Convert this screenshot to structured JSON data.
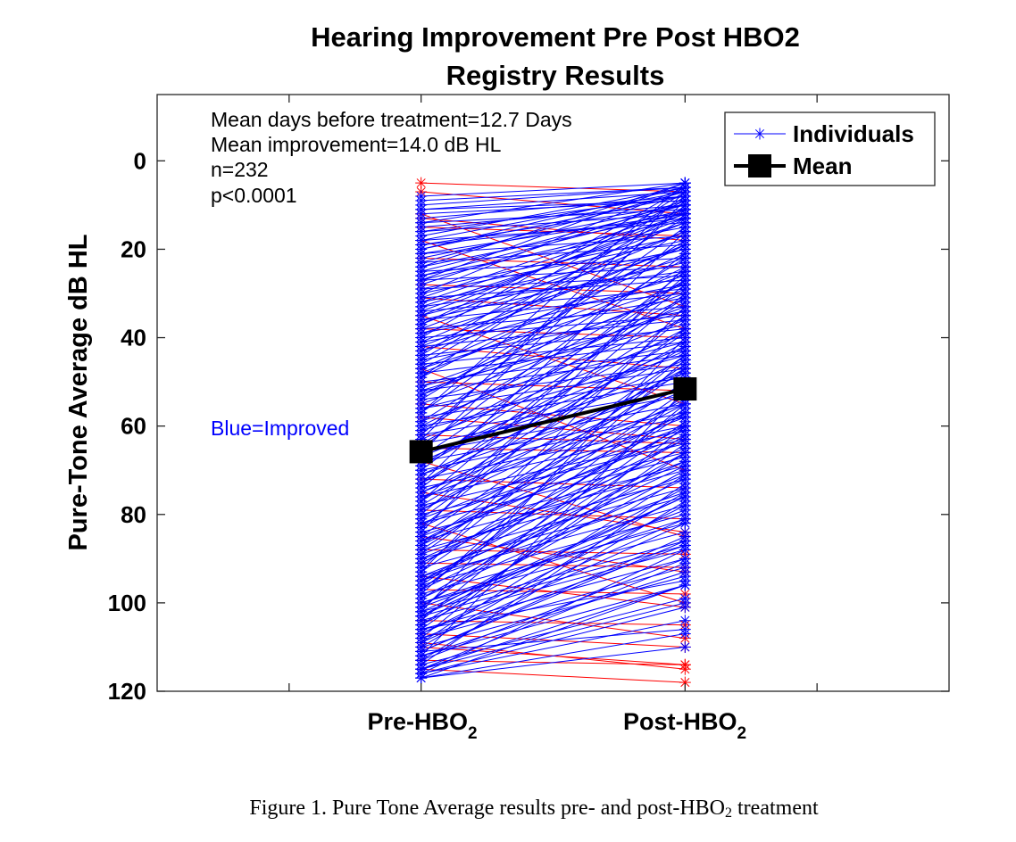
{
  "chart_data": {
    "type": "line",
    "title_lines": [
      "Hearing Improvement Pre Post HBO2",
      "Registry Results"
    ],
    "ylabel": "Pure-Tone Average dB HL",
    "ylim": [
      -15,
      120
    ],
    "y_reversed": true,
    "yticks": [
      0,
      20,
      40,
      60,
      80,
      100,
      120
    ],
    "categories": [
      {
        "main": "Pre-HBO",
        "sub": "2"
      },
      {
        "main": "Post-HBO",
        "sub": "2"
      }
    ],
    "xlim": [
      0,
      3
    ],
    "x_positions": [
      1,
      2
    ],
    "minor_x_ticks": [
      0.5,
      1,
      2,
      2.5
    ],
    "annotations": [
      "Mean days before treatment=12.7 Days",
      "Mean improvement=14.0 dB HL",
      "n=232",
      "p<0.0001"
    ],
    "side_annotation": "Blue=Improved",
    "legend": {
      "position": "top-right",
      "entries": [
        {
          "label": "Individuals",
          "style": "blue-star-line"
        },
        {
          "label": "Mean",
          "style": "black-square-line"
        }
      ]
    },
    "colors": {
      "improved": "#0000ff",
      "worsened": "#ff0000",
      "mean": "#000000"
    },
    "mean": {
      "pre": 65.8,
      "post": 51.6
    },
    "n": 232,
    "worsened_pairs": [
      [
        5,
        7
      ],
      [
        7,
        12
      ],
      [
        12,
        33
      ],
      [
        13,
        18
      ],
      [
        15,
        17
      ],
      [
        18,
        38
      ],
      [
        22,
        24
      ],
      [
        28,
        30
      ],
      [
        31,
        35
      ],
      [
        35,
        55
      ],
      [
        38,
        40
      ],
      [
        42,
        47
      ],
      [
        47,
        70
      ],
      [
        50,
        52
      ],
      [
        55,
        60
      ],
      [
        58,
        63
      ],
      [
        62,
        64
      ],
      [
        65,
        66
      ],
      [
        68,
        85
      ],
      [
        72,
        74
      ],
      [
        75,
        84
      ],
      [
        79,
        81
      ],
      [
        82,
        100
      ],
      [
        85,
        93
      ],
      [
        88,
        89
      ],
      [
        91,
        92
      ],
      [
        94,
        101
      ],
      [
        97,
        98
      ],
      [
        100,
        108
      ],
      [
        104,
        105
      ],
      [
        107,
        110
      ],
      [
        110,
        114
      ],
      [
        113,
        114
      ],
      [
        115,
        118
      ],
      [
        109,
        115
      ]
    ],
    "improved_pairs": [
      [
        8,
        5
      ],
      [
        10,
        6
      ],
      [
        11,
        7
      ],
      [
        12,
        9
      ],
      [
        13,
        8
      ],
      [
        14,
        11
      ],
      [
        15,
        10
      ],
      [
        16,
        12
      ],
      [
        17,
        6
      ],
      [
        18,
        14
      ],
      [
        19,
        13
      ],
      [
        20,
        8
      ],
      [
        21,
        17
      ],
      [
        22,
        10
      ],
      [
        23,
        19
      ],
      [
        24,
        12
      ],
      [
        25,
        22
      ],
      [
        26,
        15
      ],
      [
        27,
        24
      ],
      [
        28,
        9
      ],
      [
        29,
        26
      ],
      [
        30,
        18
      ],
      [
        31,
        27
      ],
      [
        32,
        12
      ],
      [
        33,
        25
      ],
      [
        34,
        29
      ],
      [
        35,
        20
      ],
      [
        36,
        30
      ],
      [
        37,
        14
      ],
      [
        38,
        33
      ],
      [
        39,
        22
      ],
      [
        40,
        35
      ],
      [
        41,
        16
      ],
      [
        42,
        36
      ],
      [
        43,
        26
      ],
      [
        44,
        38
      ],
      [
        45,
        11
      ],
      [
        46,
        40
      ],
      [
        47,
        28
      ],
      [
        48,
        41
      ],
      [
        49,
        19
      ],
      [
        50,
        43
      ],
      [
        51,
        30
      ],
      [
        52,
        44
      ],
      [
        53,
        24
      ],
      [
        54,
        46
      ],
      [
        55,
        33
      ],
      [
        56,
        47
      ],
      [
        57,
        15
      ],
      [
        58,
        49
      ],
      [
        59,
        36
      ],
      [
        60,
        50
      ],
      [
        61,
        27
      ],
      [
        62,
        52
      ],
      [
        63,
        39
      ],
      [
        64,
        53
      ],
      [
        65,
        21
      ],
      [
        66,
        55
      ],
      [
        67,
        42
      ],
      [
        68,
        57
      ],
      [
        69,
        31
      ],
      [
        70,
        58
      ],
      [
        71,
        45
      ],
      [
        72,
        60
      ],
      [
        73,
        35
      ],
      [
        74,
        61
      ],
      [
        75,
        48
      ],
      [
        76,
        63
      ],
      [
        77,
        26
      ],
      [
        78,
        64
      ],
      [
        79,
        51
      ],
      [
        80,
        66
      ],
      [
        81,
        38
      ],
      [
        82,
        67
      ],
      [
        83,
        54
      ],
      [
        84,
        69
      ],
      [
        85,
        44
      ],
      [
        86,
        70
      ],
      [
        87,
        57
      ],
      [
        88,
        72
      ],
      [
        89,
        47
      ],
      [
        90,
        74
      ],
      [
        91,
        60
      ],
      [
        92,
        76
      ],
      [
        93,
        52
      ],
      [
        94,
        78
      ],
      [
        95,
        63
      ],
      [
        96,
        80
      ],
      [
        97,
        56
      ],
      [
        98,
        82
      ],
      [
        99,
        66
      ],
      [
        100,
        84
      ],
      [
        101,
        59
      ],
      [
        102,
        86
      ],
      [
        103,
        70
      ],
      [
        104,
        88
      ],
      [
        105,
        74
      ],
      [
        106,
        90
      ],
      [
        107,
        78
      ],
      [
        108,
        92
      ],
      [
        109,
        82
      ],
      [
        110,
        94
      ],
      [
        111,
        86
      ],
      [
        112,
        96
      ],
      [
        113,
        90
      ],
      [
        114,
        99
      ],
      [
        115,
        100
      ],
      [
        116,
        104
      ],
      [
        117,
        107
      ],
      [
        9,
        6
      ],
      [
        11,
        9
      ],
      [
        14,
        5
      ],
      [
        16,
        8
      ],
      [
        19,
        10
      ],
      [
        21,
        12
      ],
      [
        23,
        7
      ],
      [
        26,
        11
      ],
      [
        29,
        17
      ],
      [
        32,
        20
      ],
      [
        34,
        13
      ],
      [
        36,
        23
      ],
      [
        39,
        28
      ],
      [
        41,
        31
      ],
      [
        43,
        19
      ],
      [
        45,
        34
      ],
      [
        48,
        25
      ],
      [
        51,
        37
      ],
      [
        53,
        29
      ],
      [
        56,
        41
      ],
      [
        59,
        22
      ],
      [
        61,
        44
      ],
      [
        64,
        32
      ],
      [
        66,
        48
      ],
      [
        69,
        38
      ],
      [
        71,
        51
      ],
      [
        74,
        28
      ],
      [
        76,
        55
      ],
      [
        78,
        42
      ],
      [
        81,
        58
      ],
      [
        83,
        35
      ],
      [
        86,
        61
      ],
      [
        88,
        50
      ],
      [
        90,
        65
      ],
      [
        92,
        44
      ],
      [
        95,
        68
      ],
      [
        97,
        53
      ],
      [
        99,
        72
      ],
      [
        101,
        62
      ],
      [
        103,
        76
      ],
      [
        105,
        66
      ],
      [
        107,
        81
      ],
      [
        109,
        71
      ],
      [
        111,
        85
      ],
      [
        113,
        77
      ],
      [
        115,
        91
      ],
      [
        117,
        96
      ],
      [
        27,
        5
      ],
      [
        37,
        9
      ],
      [
        46,
        13
      ],
      [
        54,
        18
      ],
      [
        62,
        10
      ],
      [
        67,
        27
      ],
      [
        73,
        16
      ],
      [
        77,
        39
      ],
      [
        84,
        24
      ],
      [
        87,
        46
      ],
      [
        93,
        33
      ],
      [
        96,
        57
      ],
      [
        102,
        40
      ],
      [
        106,
        64
      ],
      [
        112,
        52
      ],
      [
        114,
        73
      ],
      [
        116,
        88
      ],
      [
        66,
        9
      ],
      [
        70,
        25
      ],
      [
        80,
        30
      ],
      [
        98,
        45
      ],
      [
        104,
        55
      ],
      [
        108,
        60
      ],
      [
        110,
        75
      ],
      [
        63,
        7
      ],
      [
        57,
        5
      ],
      [
        49,
        8
      ],
      [
        44,
        7
      ],
      [
        40,
        6
      ],
      [
        30,
        6
      ],
      [
        24,
        5
      ],
      [
        20,
        6
      ],
      [
        18,
        7
      ],
      [
        33,
        14
      ],
      [
        60,
        31
      ],
      [
        85,
        62
      ],
      [
        94,
        71
      ],
      [
        101,
        79
      ],
      [
        108,
        87
      ],
      [
        112,
        93
      ],
      [
        115,
        96
      ],
      [
        116,
        101
      ],
      [
        117,
        110
      ],
      [
        111,
        106
      ],
      [
        68,
        43
      ],
      [
        75,
        52
      ],
      [
        82,
        60
      ],
      [
        89,
        68
      ],
      [
        95,
        75
      ],
      [
        100,
        81
      ],
      [
        103,
        87
      ],
      [
        106,
        95
      ],
      [
        52,
        34
      ],
      [
        47,
        21
      ],
      [
        42,
        19
      ],
      [
        38,
        16
      ],
      [
        35,
        12
      ],
      [
        31,
        11
      ],
      [
        27,
        13
      ],
      [
        25,
        10
      ],
      [
        73,
        41
      ],
      [
        79,
        47
      ],
      [
        86,
        55
      ],
      [
        91,
        63
      ],
      [
        97,
        69
      ],
      [
        102,
        76
      ]
    ]
  },
  "caption": {
    "before": "Figure 1. Pure Tone Average results pre- and post-HBO",
    "sub": "2",
    "after": " treatment"
  }
}
